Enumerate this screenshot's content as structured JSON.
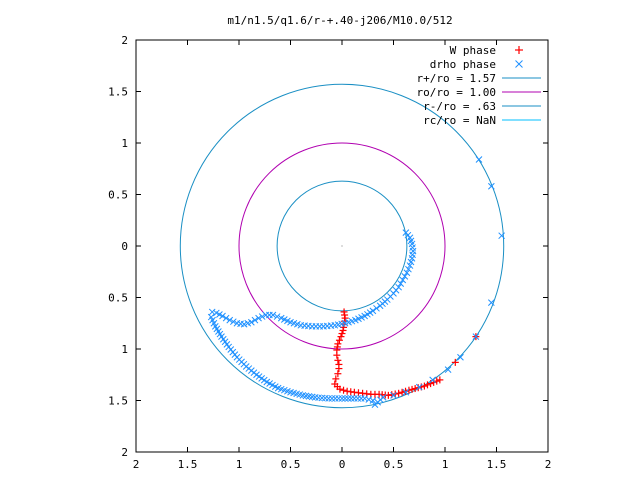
{
  "chart_data": {
    "type": "scatter",
    "title": "m1/n1.5/q1.6/r-+.40-j206/M10.0/512",
    "xlabel": "",
    "ylabel": "",
    "xlim": [
      -2,
      2
    ],
    "ylim": [
      -2,
      2
    ],
    "x_tick_labels": [
      "2",
      "1.5",
      "1",
      "0.5",
      "0",
      "0.5",
      "1",
      "1.5",
      "2"
    ],
    "y_tick_labels": [
      "2",
      "1.5",
      "1",
      "0.5",
      "0",
      "0.5",
      "1",
      "1.5",
      "2"
    ],
    "grid": false,
    "legend_position": "top-right",
    "legend": [
      {
        "label": "W phase",
        "marker": "+",
        "color": "#ff0000"
      },
      {
        "label": "drho phase",
        "marker": "x",
        "color": "#1e90ff"
      },
      {
        "label": "r+/ro = 1.57",
        "marker": "line",
        "color": "#1a8fc4"
      },
      {
        "label": "ro/ro = 1.00",
        "marker": "line",
        "color": "#b000b0"
      },
      {
        "label": "r-/ro = .63",
        "marker": "line",
        "color": "#1a8fc4"
      },
      {
        "label": "rc/ro = NaN",
        "marker": "line",
        "color": "#00bfff"
      }
    ],
    "circles": [
      {
        "name": "r+/ro = 1.57",
        "radius": 1.57,
        "color": "#1a8fc4"
      },
      {
        "name": "ro/ro = 1.00",
        "radius": 1.0,
        "color": "#b000b0"
      },
      {
        "name": "r-/ro = .63",
        "radius": 0.63,
        "color": "#1a8fc4"
      }
    ],
    "series": [
      {
        "name": "W phase",
        "marker": "+",
        "color": "#ff0000",
        "points": [
          [
            0.02,
            -0.64
          ],
          [
            0.03,
            -0.7
          ],
          [
            0.02,
            -0.76
          ],
          [
            0.01,
            -0.82
          ],
          [
            -0.01,
            -0.88
          ],
          [
            -0.04,
            -0.95
          ],
          [
            -0.05,
            -1.01
          ],
          [
            -0.05,
            -1.06
          ],
          [
            -0.04,
            -1.11
          ],
          [
            -0.03,
            -1.15
          ],
          [
            -0.03,
            -1.19
          ],
          [
            -0.04,
            -1.24
          ],
          [
            -0.06,
            -1.29
          ],
          [
            -0.07,
            -1.34
          ],
          [
            -0.02,
            -1.39
          ],
          [
            0.05,
            -1.41
          ],
          [
            0.12,
            -1.42
          ],
          [
            0.2,
            -1.43
          ],
          [
            0.28,
            -1.44
          ],
          [
            0.36,
            -1.44
          ],
          [
            0.45,
            -1.45
          ],
          [
            0.55,
            -1.43
          ],
          [
            0.65,
            -1.4
          ],
          [
            0.8,
            -1.36
          ],
          [
            0.95,
            -1.3
          ],
          [
            1.1,
            -1.13
          ],
          [
            1.3,
            -0.88
          ]
        ]
      },
      {
        "name": "drho phase",
        "marker": "x",
        "color": "#1e90ff",
        "points": [
          [
            0.62,
            0.13
          ],
          [
            0.66,
            0.08
          ],
          [
            0.68,
            0.02
          ],
          [
            0.69,
            -0.05
          ],
          [
            0.68,
            -0.12
          ],
          [
            0.66,
            -0.19
          ],
          [
            0.63,
            -0.26
          ],
          [
            0.59,
            -0.33
          ],
          [
            0.55,
            -0.4
          ],
          [
            0.5,
            -0.46
          ],
          [
            0.44,
            -0.52
          ],
          [
            0.37,
            -0.58
          ],
          [
            0.3,
            -0.63
          ],
          [
            0.22,
            -0.68
          ],
          [
            0.13,
            -0.72
          ],
          [
            0.03,
            -0.75
          ],
          [
            -0.07,
            -0.77
          ],
          [
            -0.18,
            -0.78
          ],
          [
            -0.29,
            -0.78
          ],
          [
            -0.4,
            -0.77
          ],
          [
            -0.5,
            -0.74
          ],
          [
            -0.59,
            -0.7
          ],
          [
            -0.67,
            -0.67
          ],
          [
            -0.74,
            -0.67
          ],
          [
            -0.81,
            -0.7
          ],
          [
            -0.88,
            -0.74
          ],
          [
            -0.95,
            -0.76
          ],
          [
            -1.02,
            -0.75
          ],
          [
            -1.09,
            -0.72
          ],
          [
            -1.16,
            -0.68
          ],
          [
            -1.22,
            -0.65
          ],
          [
            -1.26,
            -0.64
          ],
          [
            -1.27,
            -0.69
          ],
          [
            -1.23,
            -0.78
          ],
          [
            -1.17,
            -0.88
          ],
          [
            -1.1,
            -0.98
          ],
          [
            -1.02,
            -1.08
          ],
          [
            -0.93,
            -1.17
          ],
          [
            -0.83,
            -1.25
          ],
          [
            -0.73,
            -1.32
          ],
          [
            -0.62,
            -1.38
          ],
          [
            -0.5,
            -1.42
          ],
          [
            -0.38,
            -1.45
          ],
          [
            -0.26,
            -1.47
          ],
          [
            -0.13,
            -1.48
          ],
          [
            0.0,
            -1.48
          ],
          [
            0.12,
            -1.48
          ],
          [
            0.22,
            -1.48
          ],
          [
            0.3,
            -1.5
          ],
          [
            0.32,
            -1.54
          ],
          [
            0.4,
            -1.47
          ],
          [
            0.5,
            -1.45
          ],
          [
            0.62,
            -1.42
          ],
          [
            0.75,
            -1.37
          ],
          [
            0.88,
            -1.3
          ],
          [
            1.03,
            -1.2
          ],
          [
            1.15,
            -1.08
          ],
          [
            1.3,
            -0.88
          ],
          [
            1.45,
            -0.55
          ],
          [
            1.55,
            0.1
          ],
          [
            1.45,
            0.58
          ],
          [
            1.33,
            0.84
          ]
        ]
      }
    ]
  }
}
